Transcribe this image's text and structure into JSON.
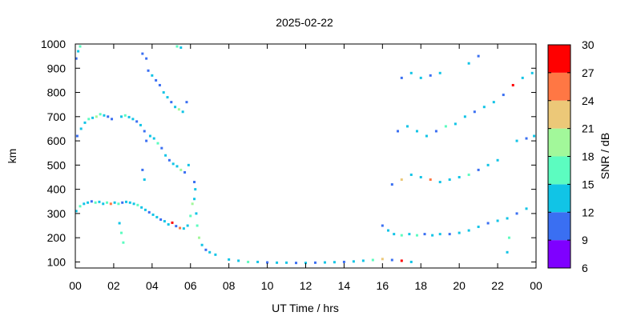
{
  "chart_data": {
    "type": "heatmap",
    "title": "2025-02-22",
    "xlabel": "UT Time / hrs",
    "ylabel": "km",
    "colorbar_label": "SNR / dB",
    "xlim": [
      0,
      24
    ],
    "ylim": [
      75,
      1000
    ],
    "x_ticks": [
      "00",
      "02",
      "04",
      "06",
      "08",
      "10",
      "12",
      "14",
      "16",
      "18",
      "20",
      "22",
      "00"
    ],
    "y_ticks": [
      100,
      200,
      300,
      400,
      500,
      600,
      700,
      800,
      900,
      1000
    ],
    "colorbar_ticks": [
      6,
      9,
      12,
      15,
      18,
      21,
      24,
      27,
      30
    ],
    "colorbar_range": [
      6,
      30
    ],
    "colorbar_colors": [
      "#7f00ff",
      "#3a6ff2",
      "#11c4e6",
      "#5cfcc0",
      "#a2f89a",
      "#ecc878",
      "#ff7744",
      "#ff0000"
    ],
    "grid": false,
    "points": [
      {
        "x": 0.05,
        "y": 940,
        "snr": 11
      },
      {
        "x": 0.15,
        "y": 970,
        "snr": 14
      },
      {
        "x": 0.25,
        "y": 990,
        "snr": 16
      },
      {
        "x": 0.1,
        "y": 620,
        "snr": 11
      },
      {
        "x": 0.3,
        "y": 650,
        "snr": 14
      },
      {
        "x": 0.5,
        "y": 675,
        "snr": 13
      },
      {
        "x": 0.7,
        "y": 690,
        "snr": 15
      },
      {
        "x": 0.9,
        "y": 695,
        "snr": 12
      },
      {
        "x": 1.1,
        "y": 700,
        "snr": 18
      },
      {
        "x": 1.3,
        "y": 710,
        "snr": 16
      },
      {
        "x": 1.5,
        "y": 705,
        "snr": 14
      },
      {
        "x": 1.7,
        "y": 700,
        "snr": 11
      },
      {
        "x": 1.9,
        "y": 690,
        "snr": 10
      },
      {
        "x": 2.4,
        "y": 700,
        "snr": 13
      },
      {
        "x": 2.6,
        "y": 705,
        "snr": 17
      },
      {
        "x": 2.8,
        "y": 698,
        "snr": 14
      },
      {
        "x": 3.0,
        "y": 690,
        "snr": 12
      },
      {
        "x": 3.2,
        "y": 680,
        "snr": 11
      },
      {
        "x": 3.4,
        "y": 665,
        "snr": 14
      },
      {
        "x": 3.6,
        "y": 640,
        "snr": 10
      },
      {
        "x": 0.05,
        "y": 310,
        "snr": 13
      },
      {
        "x": 0.25,
        "y": 330,
        "snr": 15
      },
      {
        "x": 0.45,
        "y": 340,
        "snr": 12
      },
      {
        "x": 0.65,
        "y": 345,
        "snr": 14
      },
      {
        "x": 0.85,
        "y": 350,
        "snr": 11
      },
      {
        "x": 1.05,
        "y": 345,
        "snr": 17
      },
      {
        "x": 1.25,
        "y": 348,
        "snr": 14
      },
      {
        "x": 1.45,
        "y": 340,
        "snr": 12
      },
      {
        "x": 1.65,
        "y": 345,
        "snr": 16
      },
      {
        "x": 1.85,
        "y": 340,
        "snr": 24
      },
      {
        "x": 2.05,
        "y": 345,
        "snr": 13
      },
      {
        "x": 2.25,
        "y": 340,
        "snr": 15
      },
      {
        "x": 2.45,
        "y": 345,
        "snr": 11
      },
      {
        "x": 2.65,
        "y": 348,
        "snr": 14
      },
      {
        "x": 2.85,
        "y": 345,
        "snr": 12
      },
      {
        "x": 3.05,
        "y": 340,
        "snr": 13
      },
      {
        "x": 3.25,
        "y": 335,
        "snr": 15
      },
      {
        "x": 3.45,
        "y": 325,
        "snr": 12
      },
      {
        "x": 3.65,
        "y": 315,
        "snr": 14
      },
      {
        "x": 3.85,
        "y": 305,
        "snr": 11
      },
      {
        "x": 4.05,
        "y": 295,
        "snr": 13
      },
      {
        "x": 4.25,
        "y": 285,
        "snr": 12
      },
      {
        "x": 4.45,
        "y": 275,
        "snr": 10
      },
      {
        "x": 4.65,
        "y": 268,
        "snr": 14
      },
      {
        "x": 4.85,
        "y": 255,
        "snr": 12
      },
      {
        "x": 5.05,
        "y": 262,
        "snr": 27
      },
      {
        "x": 5.25,
        "y": 248,
        "snr": 11
      },
      {
        "x": 5.45,
        "y": 240,
        "snr": 24
      },
      {
        "x": 5.65,
        "y": 238,
        "snr": 13
      },
      {
        "x": 5.85,
        "y": 250,
        "snr": 12
      },
      {
        "x": 6.0,
        "y": 290,
        "snr": 16
      },
      {
        "x": 6.1,
        "y": 340,
        "snr": 18
      },
      {
        "x": 6.2,
        "y": 360,
        "snr": 14
      },
      {
        "x": 6.3,
        "y": 300,
        "snr": 12
      },
      {
        "x": 6.35,
        "y": 250,
        "snr": 15
      },
      {
        "x": 6.45,
        "y": 200,
        "snr": 18
      },
      {
        "x": 6.6,
        "y": 170,
        "snr": 13
      },
      {
        "x": 6.8,
        "y": 150,
        "snr": 11
      },
      {
        "x": 7.0,
        "y": 140,
        "snr": 14
      },
      {
        "x": 7.3,
        "y": 130,
        "snr": 12
      },
      {
        "x": 6.2,
        "y": 430,
        "snr": 11
      },
      {
        "x": 6.25,
        "y": 400,
        "snr": 13
      },
      {
        "x": 3.8,
        "y": 890,
        "snr": 11
      },
      {
        "x": 4.0,
        "y": 870,
        "snr": 12
      },
      {
        "x": 4.2,
        "y": 850,
        "snr": 10
      },
      {
        "x": 4.4,
        "y": 830,
        "snr": 11
      },
      {
        "x": 4.6,
        "y": 800,
        "snr": 12
      },
      {
        "x": 4.8,
        "y": 780,
        "snr": 13
      },
      {
        "x": 5.0,
        "y": 760,
        "snr": 11
      },
      {
        "x": 5.2,
        "y": 740,
        "snr": 14
      },
      {
        "x": 5.4,
        "y": 730,
        "snr": 18
      },
      {
        "x": 5.6,
        "y": 720,
        "snr": 12
      },
      {
        "x": 5.8,
        "y": 760,
        "snr": 10
      },
      {
        "x": 3.7,
        "y": 600,
        "snr": 11
      },
      {
        "x": 3.9,
        "y": 620,
        "snr": 13
      },
      {
        "x": 4.1,
        "y": 610,
        "snr": 12
      },
      {
        "x": 4.3,
        "y": 590,
        "snr": 15
      },
      {
        "x": 4.5,
        "y": 570,
        "snr": 11
      },
      {
        "x": 4.7,
        "y": 540,
        "snr": 12
      },
      {
        "x": 4.9,
        "y": 520,
        "snr": 10
      },
      {
        "x": 5.1,
        "y": 505,
        "snr": 13
      },
      {
        "x": 5.3,
        "y": 495,
        "snr": 14
      },
      {
        "x": 5.5,
        "y": 480,
        "snr": 18
      },
      {
        "x": 5.7,
        "y": 470,
        "snr": 11
      },
      {
        "x": 5.9,
        "y": 500,
        "snr": 12
      },
      {
        "x": 5.3,
        "y": 990,
        "snr": 16
      },
      {
        "x": 5.5,
        "y": 985,
        "snr": 14
      },
      {
        "x": 3.5,
        "y": 960,
        "snr": 11
      },
      {
        "x": 3.7,
        "y": 940,
        "snr": 10
      },
      {
        "x": 8.0,
        "y": 110,
        "snr": 14
      },
      {
        "x": 8.5,
        "y": 105,
        "snr": 12
      },
      {
        "x": 9.0,
        "y": 100,
        "snr": 15
      },
      {
        "x": 9.5,
        "y": 100,
        "snr": 13
      },
      {
        "x": 10.0,
        "y": 98,
        "snr": 11
      },
      {
        "x": 10.5,
        "y": 97,
        "snr": 14
      },
      {
        "x": 11.0,
        "y": 97,
        "snr": 12
      },
      {
        "x": 11.5,
        "y": 96,
        "snr": 10
      },
      {
        "x": 12.0,
        "y": 96,
        "snr": 13
      },
      {
        "x": 12.5,
        "y": 97,
        "snr": 11
      },
      {
        "x": 13.0,
        "y": 98,
        "snr": 12
      },
      {
        "x": 13.5,
        "y": 99,
        "snr": 14
      },
      {
        "x": 14.0,
        "y": 100,
        "snr": 11
      },
      {
        "x": 14.5,
        "y": 102,
        "snr": 13
      },
      {
        "x": 15.0,
        "y": 105,
        "snr": 12
      },
      {
        "x": 15.5,
        "y": 108,
        "snr": 15
      },
      {
        "x": 16.0,
        "y": 112,
        "snr": 22
      },
      {
        "x": 16.5,
        "y": 108,
        "snr": 11
      },
      {
        "x": 17.0,
        "y": 105,
        "snr": 27
      },
      {
        "x": 17.5,
        "y": 100,
        "snr": 12
      },
      {
        "x": 16.0,
        "y": 250,
        "snr": 11
      },
      {
        "x": 16.3,
        "y": 230,
        "snr": 13
      },
      {
        "x": 16.6,
        "y": 215,
        "snr": 14
      },
      {
        "x": 17.0,
        "y": 210,
        "snr": 16
      },
      {
        "x": 17.4,
        "y": 215,
        "snr": 12
      },
      {
        "x": 17.8,
        "y": 210,
        "snr": 15
      },
      {
        "x": 18.2,
        "y": 215,
        "snr": 11
      },
      {
        "x": 18.6,
        "y": 210,
        "snr": 13
      },
      {
        "x": 19.0,
        "y": 215,
        "snr": 14
      },
      {
        "x": 19.5,
        "y": 215,
        "snr": 11
      },
      {
        "x": 20.0,
        "y": 220,
        "snr": 12
      },
      {
        "x": 20.5,
        "y": 230,
        "snr": 14
      },
      {
        "x": 21.0,
        "y": 245,
        "snr": 13
      },
      {
        "x": 21.5,
        "y": 260,
        "snr": 11
      },
      {
        "x": 22.0,
        "y": 270,
        "snr": 12
      },
      {
        "x": 22.5,
        "y": 280,
        "snr": 14
      },
      {
        "x": 23.0,
        "y": 300,
        "snr": 11
      },
      {
        "x": 23.5,
        "y": 320,
        "snr": 13
      },
      {
        "x": 16.5,
        "y": 420,
        "snr": 11
      },
      {
        "x": 17.0,
        "y": 440,
        "snr": 22
      },
      {
        "x": 17.5,
        "y": 460,
        "snr": 14
      },
      {
        "x": 18.0,
        "y": 450,
        "snr": 12
      },
      {
        "x": 18.5,
        "y": 440,
        "snr": 24
      },
      {
        "x": 19.0,
        "y": 430,
        "snr": 12
      },
      {
        "x": 19.5,
        "y": 440,
        "snr": 13
      },
      {
        "x": 20.0,
        "y": 450,
        "snr": 14
      },
      {
        "x": 20.5,
        "y": 460,
        "snr": 15
      },
      {
        "x": 21.0,
        "y": 480,
        "snr": 11
      },
      {
        "x": 21.5,
        "y": 500,
        "snr": 12
      },
      {
        "x": 22.0,
        "y": 520,
        "snr": 13
      },
      {
        "x": 16.8,
        "y": 640,
        "snr": 11
      },
      {
        "x": 17.3,
        "y": 660,
        "snr": 14
      },
      {
        "x": 17.8,
        "y": 640,
        "snr": 12
      },
      {
        "x": 18.3,
        "y": 620,
        "snr": 13
      },
      {
        "x": 18.8,
        "y": 640,
        "snr": 11
      },
      {
        "x": 19.3,
        "y": 660,
        "snr": 15
      },
      {
        "x": 19.8,
        "y": 670,
        "snr": 12
      },
      {
        "x": 20.3,
        "y": 700,
        "snr": 14
      },
      {
        "x": 20.8,
        "y": 720,
        "snr": 11
      },
      {
        "x": 21.3,
        "y": 740,
        "snr": 13
      },
      {
        "x": 21.8,
        "y": 760,
        "snr": 12
      },
      {
        "x": 22.3,
        "y": 790,
        "snr": 11
      },
      {
        "x": 22.8,
        "y": 830,
        "snr": 27
      },
      {
        "x": 23.3,
        "y": 860,
        "snr": 13
      },
      {
        "x": 23.8,
        "y": 880,
        "snr": 12
      },
      {
        "x": 17.0,
        "y": 860,
        "snr": 11
      },
      {
        "x": 17.5,
        "y": 880,
        "snr": 14
      },
      {
        "x": 18.0,
        "y": 860,
        "snr": 12
      },
      {
        "x": 18.5,
        "y": 870,
        "snr": 11
      },
      {
        "x": 19.0,
        "y": 880,
        "snr": 13
      },
      {
        "x": 20.5,
        "y": 920,
        "snr": 12
      },
      {
        "x": 21.0,
        "y": 950,
        "snr": 11
      },
      {
        "x": 23.0,
        "y": 600,
        "snr": 12
      },
      {
        "x": 23.5,
        "y": 610,
        "snr": 11
      },
      {
        "x": 23.9,
        "y": 620,
        "snr": 13
      },
      {
        "x": 22.5,
        "y": 140,
        "snr": 14
      },
      {
        "x": 22.6,
        "y": 200,
        "snr": 16
      },
      {
        "x": 2.3,
        "y": 260,
        "snr": 14
      },
      {
        "x": 2.4,
        "y": 220,
        "snr": 16
      },
      {
        "x": 2.5,
        "y": 180,
        "snr": 15
      },
      {
        "x": 3.5,
        "y": 480,
        "snr": 11
      },
      {
        "x": 3.6,
        "y": 440,
        "snr": 12
      }
    ]
  }
}
